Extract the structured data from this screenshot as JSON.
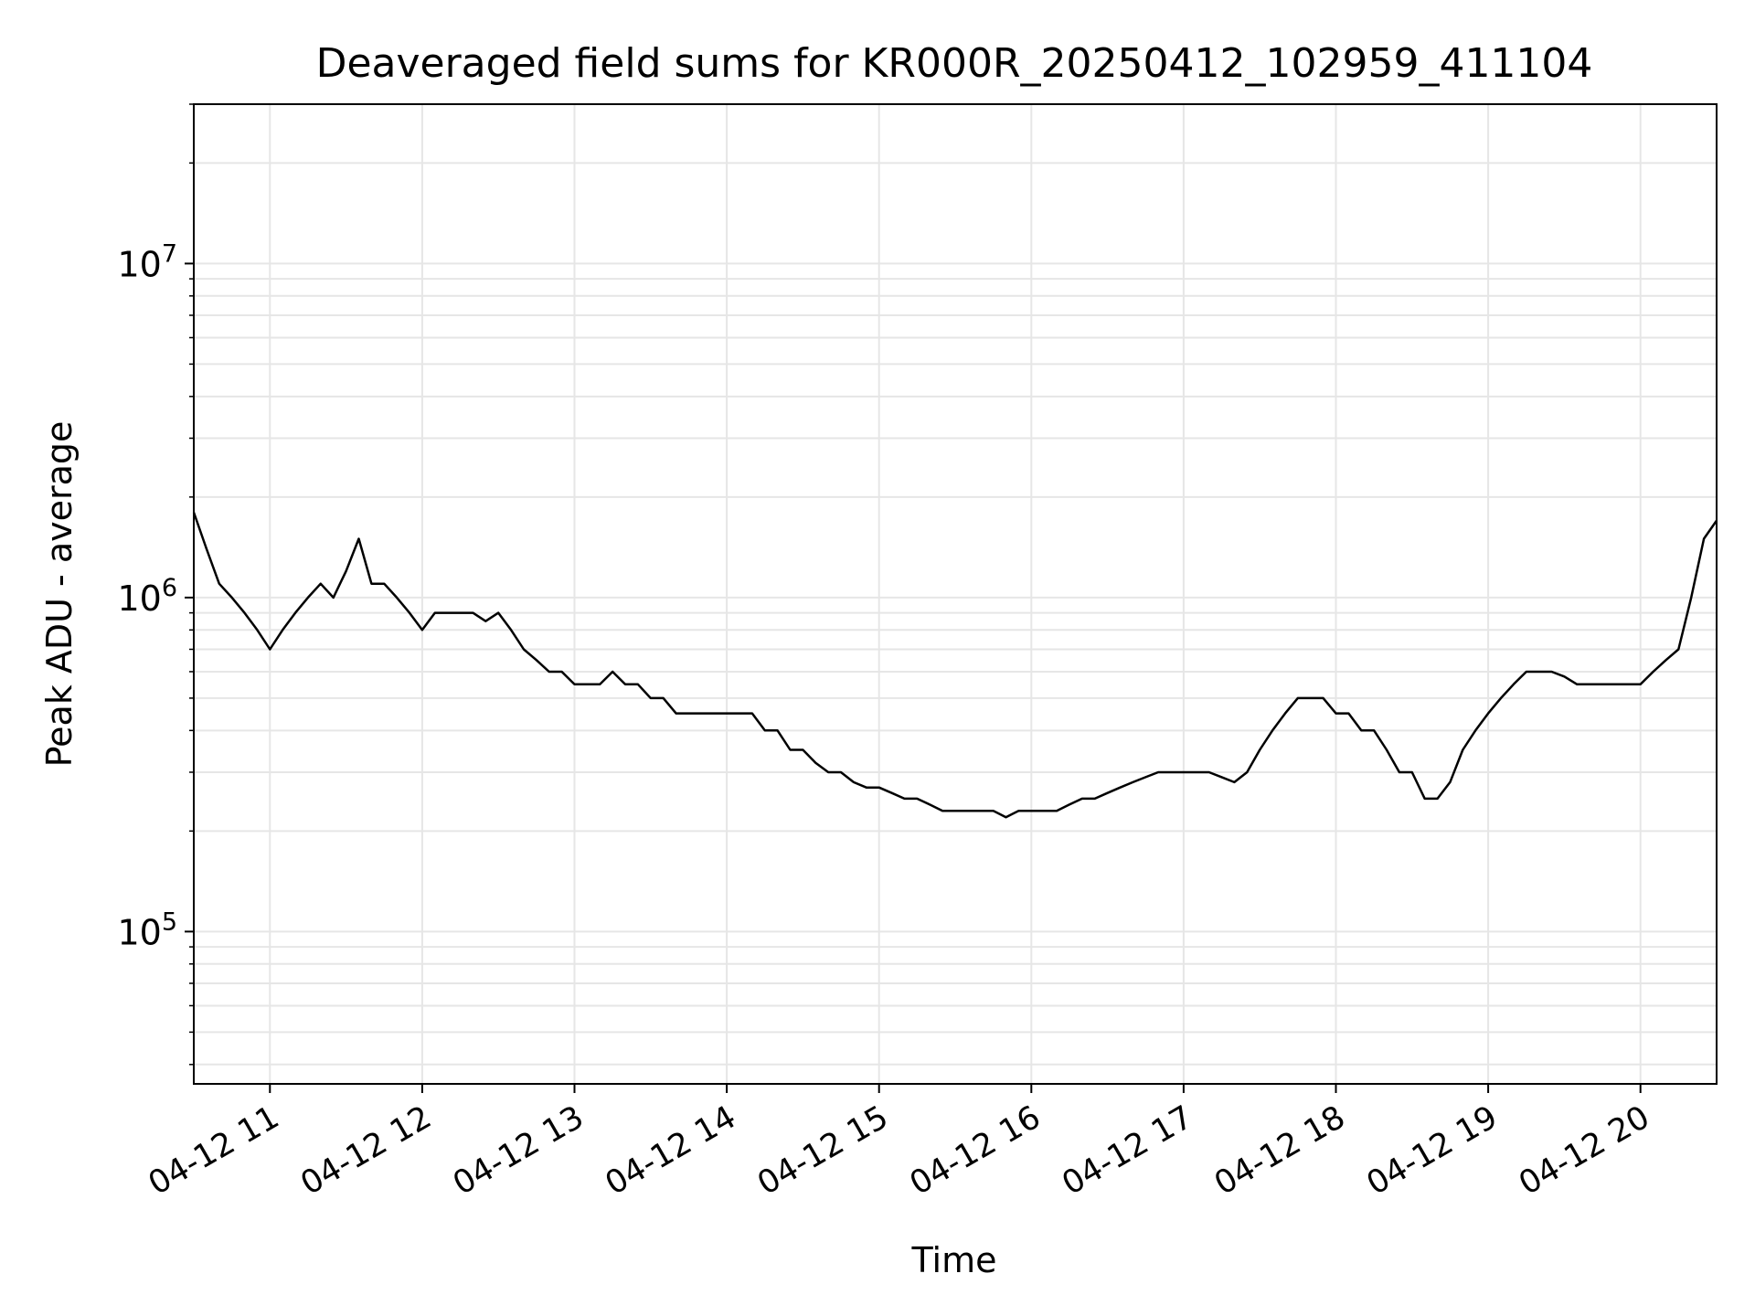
{
  "chart_data": {
    "type": "line",
    "title": "Deaveraged field sums for KR000R_20250412_102959_411104",
    "xlabel": "Time",
    "ylabel": "Peak ADU - average",
    "y_scale": "log",
    "ylim": [
      35000,
      30000000
    ],
    "xlim": [
      "2025-04-12 10:30",
      "2025-04-12 20:30"
    ],
    "grid": true,
    "line_color": "#000000",
    "grid_color": "#e6e6e6",
    "x_ticks": [
      {
        "t": "2025-04-12 11:00",
        "label": "04-12 11"
      },
      {
        "t": "2025-04-12 12:00",
        "label": "04-12 12"
      },
      {
        "t": "2025-04-12 13:00",
        "label": "04-12 13"
      },
      {
        "t": "2025-04-12 14:00",
        "label": "04-12 14"
      },
      {
        "t": "2025-04-12 15:00",
        "label": "04-12 15"
      },
      {
        "t": "2025-04-12 16:00",
        "label": "04-12 16"
      },
      {
        "t": "2025-04-12 17:00",
        "label": "04-12 17"
      },
      {
        "t": "2025-04-12 18:00",
        "label": "04-12 18"
      },
      {
        "t": "2025-04-12 19:00",
        "label": "04-12 19"
      },
      {
        "t": "2025-04-12 20:00",
        "label": "04-12 20"
      }
    ],
    "y_ticks": [
      {
        "value": 100000,
        "mantissa": "10",
        "exponent": "5"
      },
      {
        "value": 1000000,
        "mantissa": "10",
        "exponent": "6"
      },
      {
        "value": 10000000,
        "mantissa": "10",
        "exponent": "7"
      }
    ],
    "series": [
      {
        "x": [
          "2025-04-12 10:30",
          "2025-04-12 10:35",
          "2025-04-12 10:40",
          "2025-04-12 10:45",
          "2025-04-12 10:50",
          "2025-04-12 10:55",
          "2025-04-12 11:00",
          "2025-04-12 11:05",
          "2025-04-12 11:10",
          "2025-04-12 11:15",
          "2025-04-12 11:20",
          "2025-04-12 11:25",
          "2025-04-12 11:30",
          "2025-04-12 11:35",
          "2025-04-12 11:40",
          "2025-04-12 11:45",
          "2025-04-12 11:50",
          "2025-04-12 11:55",
          "2025-04-12 12:00",
          "2025-04-12 12:05",
          "2025-04-12 12:10",
          "2025-04-12 12:15",
          "2025-04-12 12:20",
          "2025-04-12 12:25",
          "2025-04-12 12:30",
          "2025-04-12 12:35",
          "2025-04-12 12:40",
          "2025-04-12 12:45",
          "2025-04-12 12:50",
          "2025-04-12 12:55",
          "2025-04-12 13:00",
          "2025-04-12 13:05",
          "2025-04-12 13:10",
          "2025-04-12 13:15",
          "2025-04-12 13:20",
          "2025-04-12 13:25",
          "2025-04-12 13:30",
          "2025-04-12 13:35",
          "2025-04-12 13:40",
          "2025-04-12 13:45",
          "2025-04-12 13:50",
          "2025-04-12 13:55",
          "2025-04-12 14:00",
          "2025-04-12 14:05",
          "2025-04-12 14:10",
          "2025-04-12 14:15",
          "2025-04-12 14:20",
          "2025-04-12 14:25",
          "2025-04-12 14:30",
          "2025-04-12 14:35",
          "2025-04-12 14:40",
          "2025-04-12 14:45",
          "2025-04-12 14:50",
          "2025-04-12 14:55",
          "2025-04-12 15:00",
          "2025-04-12 15:05",
          "2025-04-12 15:10",
          "2025-04-12 15:15",
          "2025-04-12 15:20",
          "2025-04-12 15:25",
          "2025-04-12 15:30",
          "2025-04-12 15:35",
          "2025-04-12 15:40",
          "2025-04-12 15:45",
          "2025-04-12 15:50",
          "2025-04-12 15:55",
          "2025-04-12 16:00",
          "2025-04-12 16:05",
          "2025-04-12 16:10",
          "2025-04-12 16:15",
          "2025-04-12 16:20",
          "2025-04-12 16:25",
          "2025-04-12 16:30",
          "2025-04-12 16:35",
          "2025-04-12 16:40",
          "2025-04-12 16:45",
          "2025-04-12 16:50",
          "2025-04-12 16:55",
          "2025-04-12 17:00",
          "2025-04-12 17:05",
          "2025-04-12 17:10",
          "2025-04-12 17:15",
          "2025-04-12 17:20",
          "2025-04-12 17:25",
          "2025-04-12 17:30",
          "2025-04-12 17:35",
          "2025-04-12 17:40",
          "2025-04-12 17:45",
          "2025-04-12 17:50",
          "2025-04-12 17:55",
          "2025-04-12 18:00",
          "2025-04-12 18:05",
          "2025-04-12 18:10",
          "2025-04-12 18:15",
          "2025-04-12 18:20",
          "2025-04-12 18:25",
          "2025-04-12 18:30",
          "2025-04-12 18:35",
          "2025-04-12 18:40",
          "2025-04-12 18:45",
          "2025-04-12 18:50",
          "2025-04-12 18:55",
          "2025-04-12 19:00",
          "2025-04-12 19:05",
          "2025-04-12 19:10",
          "2025-04-12 19:15",
          "2025-04-12 19:20",
          "2025-04-12 19:25",
          "2025-04-12 19:30",
          "2025-04-12 19:35",
          "2025-04-12 19:40",
          "2025-04-12 19:45",
          "2025-04-12 19:50",
          "2025-04-12 19:55",
          "2025-04-12 20:00",
          "2025-04-12 20:05",
          "2025-04-12 20:10",
          "2025-04-12 20:15",
          "2025-04-12 20:20",
          "2025-04-12 20:25",
          "2025-04-12 20:30"
        ],
        "y": [
          1800000,
          1400000,
          1100000,
          1000000,
          900000,
          800000,
          700000,
          800000,
          900000,
          1000000,
          1100000,
          1000000,
          1200000,
          1500000,
          1100000,
          1100000,
          1000000,
          900000,
          800000,
          900000,
          900000,
          900000,
          900000,
          850000,
          900000,
          800000,
          700000,
          650000,
          600000,
          600000,
          550000,
          550000,
          550000,
          600000,
          550000,
          550000,
          500000,
          500000,
          450000,
          450000,
          450000,
          450000,
          450000,
          450000,
          450000,
          400000,
          400000,
          350000,
          350000,
          320000,
          300000,
          300000,
          280000,
          270000,
          270000,
          260000,
          250000,
          250000,
          240000,
          230000,
          230000,
          230000,
          230000,
          230000,
          220000,
          230000,
          230000,
          230000,
          230000,
          240000,
          250000,
          250000,
          260000,
          270000,
          280000,
          290000,
          300000,
          300000,
          300000,
          300000,
          300000,
          290000,
          280000,
          300000,
          350000,
          400000,
          450000,
          500000,
          500000,
          500000,
          450000,
          450000,
          400000,
          400000,
          350000,
          300000,
          300000,
          250000,
          250000,
          280000,
          350000,
          400000,
          450000,
          500000,
          550000,
          600000,
          600000,
          600000,
          580000,
          550000,
          550000,
          550000,
          550000,
          550000,
          550000,
          600000,
          650000,
          700000,
          1000000,
          1500000,
          1700000
        ]
      }
    ]
  }
}
